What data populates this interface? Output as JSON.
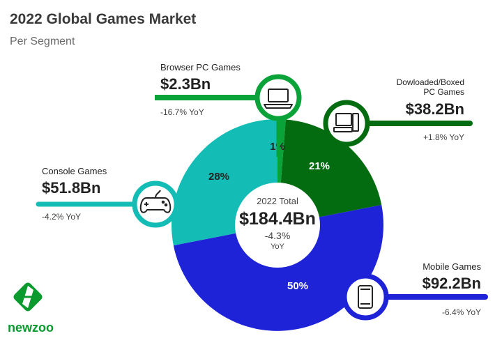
{
  "colors": {
    "browser": "#0aa33a",
    "downloaded": "#036b10",
    "mobile": "#1f23d8",
    "console": "#13bdb5",
    "title": "#3a3a3a",
    "subtitle": "#6b6b6b",
    "text": "#222222",
    "brand": "#0a9a2e"
  },
  "header": {
    "title": "2022 Global Games Market",
    "subtitle": "Per Segment"
  },
  "center": {
    "label": "2022 Total",
    "value": "$184.4Bn",
    "change": "-4.3%",
    "change_unit": "YoY"
  },
  "chart_data": {
    "type": "pie",
    "title": "2022 Global Games Market",
    "subtitle": "Per Segment",
    "total": 184.4,
    "total_change_pct": -4.3,
    "unit": "Bn USD",
    "slices": [
      {
        "key": "browser",
        "name": "Browser PC Games",
        "value": 2.3,
        "pct_label": "1%",
        "revenue_label": "$2.3Bn",
        "yoy_label": "-16.7% YoY",
        "icon": "laptop-icon"
      },
      {
        "key": "downloaded",
        "name": "Dowloaded/Boxed PC Games",
        "name_lines": [
          "Dowloaded/Boxed",
          "PC Games"
        ],
        "value": 38.2,
        "pct_label": "21%",
        "revenue_label": "$38.2Bn",
        "yoy_label": "+1.8% YoY",
        "icon": "desktop-computer-icon"
      },
      {
        "key": "mobile",
        "name": "Mobile Games",
        "value": 92.2,
        "pct_label": "50%",
        "revenue_label": "$92.2Bn",
        "yoy_label": "-6.4% YoY",
        "icon": "smartphone-icon"
      },
      {
        "key": "console",
        "name": "Console Games",
        "value": 51.8,
        "pct_label": "28%",
        "revenue_label": "$51.8Bn",
        "yoy_label": "-4.2% YoY",
        "icon": "gamepad-icon"
      }
    ]
  },
  "brand": {
    "name": "newzoo",
    "icon": "newzoo-logo-icon"
  }
}
